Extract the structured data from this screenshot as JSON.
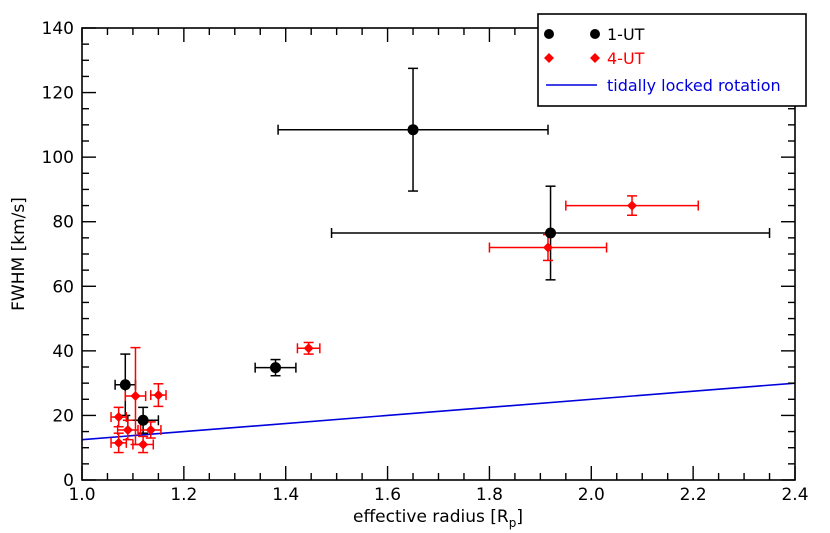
{
  "chart_data": {
    "type": "scatter",
    "title": "",
    "xlabel": "effective radius [R",
    "xlabel_sub": "p",
    "xlabel_close": "]",
    "ylabel": "FWHM [km/s]",
    "xlim": [
      1.0,
      2.4
    ],
    "ylim": [
      0,
      140
    ],
    "xticks": [
      1.0,
      1.2,
      1.4,
      1.6,
      1.8,
      2.0,
      2.2,
      2.4
    ],
    "xtick_labels": [
      "1.0",
      "1.2",
      "1.4",
      "1.6",
      "1.8",
      "2.0",
      "2.2",
      "2.4"
    ],
    "yticks": [
      0,
      20,
      40,
      60,
      80,
      100,
      120,
      140
    ],
    "ytick_labels": [
      "0",
      "20",
      "40",
      "60",
      "80",
      "100",
      "120",
      "140"
    ],
    "legend_position": "top-right",
    "series": [
      {
        "name": "1-UT",
        "marker": "circle",
        "color": "#000000",
        "points": [
          {
            "x": 1.085,
            "y": 29.5,
            "xerr": 0.02,
            "yerr": 9.5
          },
          {
            "x": 1.12,
            "y": 18.5,
            "xerr": 0.03,
            "yerr": 4
          },
          {
            "x": 1.38,
            "y": 34.8,
            "xerr": 0.04,
            "yerr": 2.5
          },
          {
            "x": 1.65,
            "y": 108.5,
            "xerr": 0.265,
            "yerr": 19
          },
          {
            "x": 1.92,
            "y": 76.5,
            "xerr": 0.43,
            "yerr": 14.5
          }
        ]
      },
      {
        "name": "4-UT",
        "marker": "diamond",
        "color": "#ff0000",
        "points": [
          {
            "x": 1.072,
            "y": 19.5,
            "xerr": 0.015,
            "yerr": 3
          },
          {
            "x": 1.072,
            "y": 11.5,
            "xerr": 0.015,
            "yerr": 3
          },
          {
            "x": 1.09,
            "y": 15.5,
            "xerr": 0.02,
            "yerr": 3
          },
          {
            "x": 1.105,
            "y": 26.0,
            "xerr": 0.02,
            "yerr": 15
          },
          {
            "x": 1.12,
            "y": 11.0,
            "xerr": 0.02,
            "yerr": 2.5
          },
          {
            "x": 1.135,
            "y": 15.5,
            "xerr": 0.02,
            "yerr": 2.5
          },
          {
            "x": 1.15,
            "y": 26.3,
            "xerr": 0.015,
            "yerr": 3.5
          },
          {
            "x": 1.445,
            "y": 40.8,
            "xerr": 0.022,
            "yerr": 1.8
          },
          {
            "x": 1.915,
            "y": 72.0,
            "xerr": 0.115,
            "yerr": 4
          },
          {
            "x": 2.08,
            "y": 85.0,
            "xerr": 0.13,
            "yerr": 3
          }
        ]
      },
      {
        "name": "tidally locked rotation",
        "marker": "line",
        "color": "#0000dd",
        "line": [
          {
            "x": 1.0,
            "y": 12.5
          },
          {
            "x": 2.4,
            "y": 30.0
          }
        ]
      }
    ]
  }
}
